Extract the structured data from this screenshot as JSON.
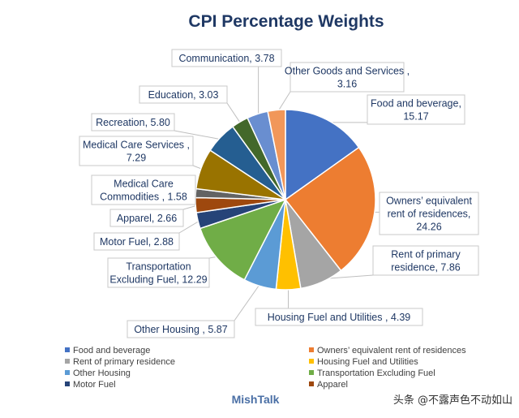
{
  "chart_data": {
    "type": "pie",
    "title": "CPI Percentage Weights",
    "slices": [
      {
        "name": "Food and beverage",
        "value": 15.17,
        "label_lines": [
          "Food and beverage,",
          "15.17"
        ],
        "color": "#4472c4"
      },
      {
        "name": "Owners’ equivalent rent of residences",
        "value": 24.26,
        "label_lines": [
          "Owners’ equivalent",
          "rent of residences,",
          "24.26"
        ],
        "color": "#ed7d31"
      },
      {
        "name": "Rent of primary residence",
        "value": 7.86,
        "label_lines": [
          "Rent of primary",
          "residence, 7.86"
        ],
        "color": "#a5a5a5"
      },
      {
        "name": "Housing Fuel and Utilities",
        "value": 4.39,
        "label_lines": [
          "Housing Fuel and Utilities , 4.39"
        ],
        "color": "#ffc000"
      },
      {
        "name": "Other Housing",
        "value": 5.87,
        "label_lines": [
          "Other Housing , 5.87"
        ],
        "color": "#5b9bd5"
      },
      {
        "name": "Transportation Excluding Fuel",
        "value": 12.29,
        "label_lines": [
          "Transportation",
          "Excluding Fuel, 12.29"
        ],
        "color": "#70ad47"
      },
      {
        "name": "Motor Fuel",
        "value": 2.88,
        "label_lines": [
          "Motor Fuel, 2.88"
        ],
        "color": "#264478"
      },
      {
        "name": "Apparel",
        "value": 2.66,
        "label_lines": [
          "Apparel, 2.66"
        ],
        "color": "#9e480e"
      },
      {
        "name": "Medical Care Commodities",
        "value": 1.58,
        "label_lines": [
          "Medical Care",
          "Commodities , 1.58"
        ],
        "color": "#636363"
      },
      {
        "name": "Medical Care Services",
        "value": 7.29,
        "label_lines": [
          "Medical Care Services ,",
          "7.29"
        ],
        "color": "#997300"
      },
      {
        "name": "Recreation",
        "value": 5.8,
        "label_lines": [
          "Recreation, 5.80"
        ],
        "color": "#255e91"
      },
      {
        "name": "Education",
        "value": 3.03,
        "label_lines": [
          "Education, 3.03"
        ],
        "color": "#43682b"
      },
      {
        "name": "Communication",
        "value": 3.78,
        "label_lines": [
          "Communication, 3.78"
        ],
        "color": "#698ed0"
      },
      {
        "name": "Other Goods and Services",
        "value": 3.16,
        "label_lines": [
          "Other Goods and Services ,",
          "3.16"
        ],
        "color": "#f1975a"
      }
    ],
    "legend": {
      "placement": "bottom",
      "entries": [
        "Food and beverage",
        "Owners’ equivalent rent of residences",
        "Rent of primary residence",
        "Housing Fuel and Utilities",
        "Other Housing",
        "Transportation Excluding Fuel",
        "Motor Fuel",
        "Apparel"
      ]
    }
  },
  "footer": {
    "brand": "MishTalk",
    "watermark": "头条 @不露声色不动如山"
  }
}
